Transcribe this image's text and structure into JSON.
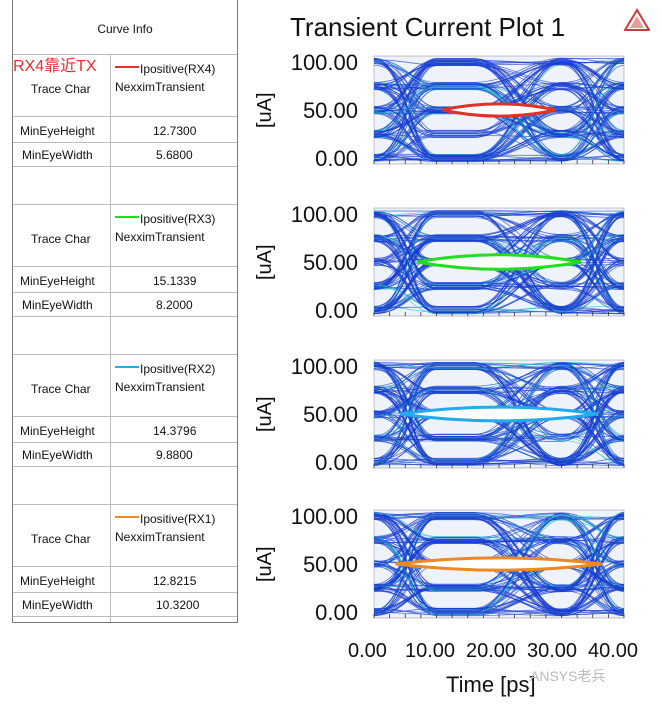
{
  "curve_info": {
    "title": "Curve Info",
    "annotation": "RX4靠近TX",
    "rows_label_trace": "Trace Char",
    "rows_label_height": "MinEyeHeight",
    "rows_label_width": "MinEyeWidth",
    "traces": [
      {
        "name": "Ipositive(RX4)",
        "solver": "NexximTransient",
        "min_eye_height": "12.7300",
        "min_eye_width": "5.6800",
        "color": "#e0302a"
      },
      {
        "name": "Ipositive(RX3)",
        "solver": "NexximTransient",
        "min_eye_height": "15.1339",
        "min_eye_width": "8.2000",
        "color": "#22dd22"
      },
      {
        "name": "Ipositive(RX2)",
        "solver": "NexximTransient",
        "min_eye_height": "14.3796",
        "min_eye_width": "9.8800",
        "color": "#22aaee"
      },
      {
        "name": "Ipositive(RX1)",
        "solver": "NexximTransient",
        "min_eye_height": "12.8215",
        "min_eye_width": "10.3200",
        "color": "#ee8822"
      }
    ]
  },
  "chart_data": {
    "type": "eye-diagram",
    "title": "Transient Current Plot 1",
    "xlabel": "Time [ps]",
    "ylabel": "[uA]",
    "xlim": [
      0,
      40
    ],
    "ylim": [
      0,
      100
    ],
    "x_ticks": [
      "0.00",
      "10.00",
      "20.00",
      "30.00",
      "40.00"
    ],
    "y_ticks": [
      "0.00",
      "50.00",
      "100.00"
    ],
    "trace_color": "#1a3fcf",
    "panels": [
      {
        "series": "Ipositive(RX4)",
        "eye_center_x": 20,
        "eye_center_y": 50,
        "min_eye_height": 12.73,
        "min_eye_width": 5.68,
        "eye_color": "#e0302a"
      },
      {
        "series": "Ipositive(RX3)",
        "eye_center_x": 20,
        "eye_center_y": 50,
        "min_eye_height": 15.1339,
        "min_eye_width": 8.2,
        "eye_color": "#22dd22"
      },
      {
        "series": "Ipositive(RX2)",
        "eye_center_x": 20,
        "eye_center_y": 50,
        "min_eye_height": 14.3796,
        "min_eye_width": 9.88,
        "eye_color": "#22aaee"
      },
      {
        "series": "Ipositive(RX1)",
        "eye_center_x": 20,
        "eye_center_y": 50,
        "min_eye_height": 12.8215,
        "min_eye_width": 10.32,
        "eye_color": "#ee8822"
      }
    ]
  },
  "watermark": "ANSYS老兵"
}
